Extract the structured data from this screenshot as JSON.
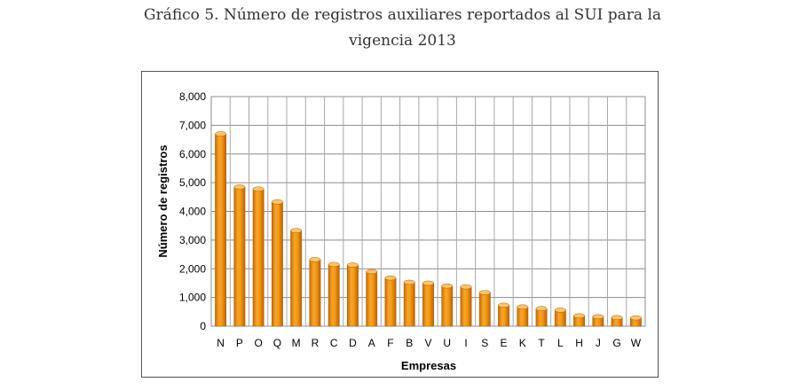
{
  "caption": {
    "line1": "Gráfico 5. Número de registros auxiliares reportados al SUI para la",
    "line2": "vigencia 2013"
  },
  "chart_data": {
    "type": "bar",
    "title": "",
    "xlabel": "Empresas",
    "ylabel": "Número de registros",
    "ylim": [
      0,
      8000
    ],
    "yticks": [
      "0",
      "1,000",
      "2,000",
      "3,000",
      "4,000",
      "5,000",
      "6,000",
      "7,000",
      "8,000"
    ],
    "grid": true,
    "legend": "none",
    "bar_color": "#f39c12",
    "categories": [
      "N",
      "P",
      "O",
      "Q",
      "M",
      "R",
      "C",
      "D",
      "A",
      "F",
      "B",
      "V",
      "U",
      "I",
      "S",
      "E",
      "K",
      "T",
      "L",
      "H",
      "J",
      "G",
      "W"
    ],
    "values": [
      6700,
      4850,
      4780,
      4330,
      3330,
      2320,
      2150,
      2130,
      1900,
      1680,
      1530,
      1500,
      1400,
      1370,
      1170,
      730,
      670,
      610,
      560,
      360,
      330,
      300,
      290
    ]
  }
}
